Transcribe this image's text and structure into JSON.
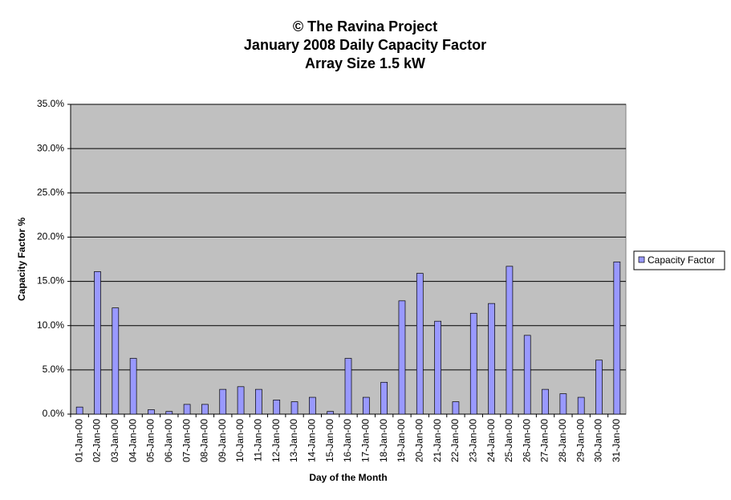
{
  "chart_data": {
    "type": "bar",
    "title": [
      "© The Ravina Project",
      "January 2008 Daily Capacity Factor",
      "Array Size 1.5 kW"
    ],
    "x_label": "Day of the Month",
    "y_label": "Capacity Factor %",
    "categories": [
      "01-Jan-00",
      "02-Jan-00",
      "03-Jan-00",
      "04-Jan-00",
      "05-Jan-00",
      "06-Jan-00",
      "07-Jan-00",
      "08-Jan-00",
      "09-Jan-00",
      "10-Jan-00",
      "11-Jan-00",
      "12-Jan-00",
      "13-Jan-00",
      "14-Jan-00",
      "15-Jan-00",
      "16-Jan-00",
      "17-Jan-00",
      "18-Jan-00",
      "19-Jan-00",
      "20-Jan-00",
      "21-Jan-00",
      "22-Jan-00",
      "23-Jan-00",
      "24-Jan-00",
      "25-Jan-00",
      "26-Jan-00",
      "27-Jan-00",
      "28-Jan-00",
      "29-Jan-00",
      "30-Jan-00",
      "31-Jan-00"
    ],
    "series": [
      {
        "name": "Capacity Factor",
        "color": "#9999ff",
        "values": [
          0.8,
          16.1,
          12.0,
          6.3,
          0.5,
          0.3,
          1.1,
          1.1,
          2.8,
          3.1,
          2.8,
          1.6,
          1.4,
          1.9,
          0.3,
          6.3,
          1.9,
          3.6,
          12.8,
          15.9,
          10.5,
          1.4,
          11.4,
          12.5,
          16.7,
          8.9,
          2.8,
          2.3,
          1.9,
          6.1,
          17.2
        ]
      }
    ],
    "ylim": [
      0,
      35
    ],
    "yticks": [
      {
        "value": 0,
        "label": "0.0%"
      },
      {
        "value": 5,
        "label": "5.0%"
      },
      {
        "value": 10,
        "label": "10.0%"
      },
      {
        "value": 15,
        "label": "15.0%"
      },
      {
        "value": 20,
        "label": "20.0%"
      },
      {
        "value": 25,
        "label": "25.0%"
      },
      {
        "value": 30,
        "label": "30.0%"
      },
      {
        "value": 35,
        "label": "35.0%"
      }
    ],
    "grid": true,
    "legend": "right",
    "plot_background": "#c0c0c0"
  }
}
